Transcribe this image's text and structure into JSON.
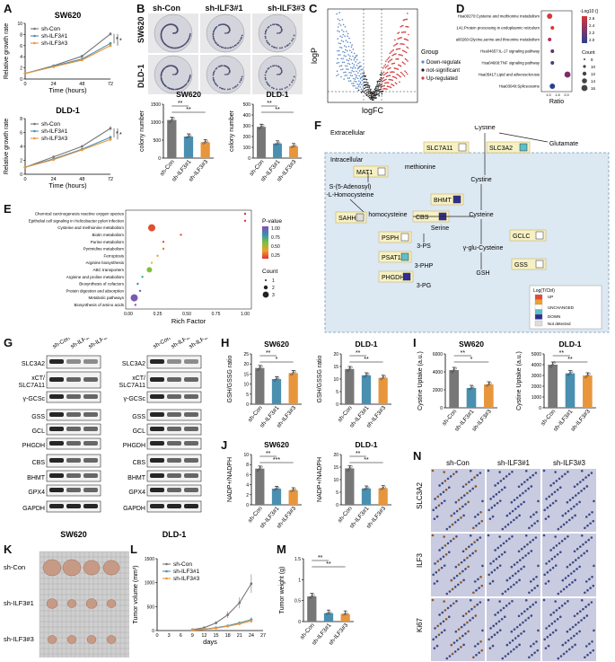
{
  "panels": {
    "A": {
      "letter": "A",
      "charts": [
        {
          "title": "SW620",
          "ylabel": "Relative growth rate",
          "xlabel": "Time (hours)",
          "legend": [
            "sh-Con",
            "sh-ILF3#1",
            "sh-ILF3#3"
          ],
          "sig": [
            "*",
            "*"
          ],
          "xticks": [
            "0",
            "24",
            "48",
            "72"
          ]
        },
        {
          "title": "DLD-1",
          "ylabel": "Relative growth rate",
          "xlabel": "Time (hours)",
          "legend": [
            "sh-Con",
            "sh-ILF3#1",
            "sh-ILF3#3"
          ],
          "sig": [
            "*",
            "*"
          ],
          "xticks": [
            "0",
            "24",
            "48",
            "72"
          ]
        }
      ]
    },
    "B": {
      "letter": "B",
      "col_labels": [
        "sh-Con",
        "sh-ILF3#1",
        "sh-ILF3#3"
      ],
      "row_labels": [
        "SW620",
        "DLD-1"
      ],
      "bar_titles": [
        "SW620",
        "DLD-1"
      ],
      "ylabel": "colony number",
      "sig": [
        "**",
        "**"
      ]
    },
    "C": {
      "letter": "C",
      "xlabel": "logFC",
      "ylabel": "logP",
      "legend_title": "Group",
      "legend": [
        "Down-regulated",
        "not-significant",
        "Up-regulated"
      ]
    },
    "D": {
      "letter": "D",
      "xlabel": "Ratio",
      "terms": [
        "Hsa00270:Cysteine and methionine metabolism",
        "Hsa04141:Protein processing in endoplasmic reticulum",
        "Hsa00260:Glycine,serine and threonine metabolism",
        "Hsa04657:IL-17 signaling pathway",
        "Hsa04668:TNF signaling pathway",
        "Hsa05417:Lipid and atherosclerosis",
        "Hsa03040:Spliceosome"
      ],
      "color_title": "-Log10 ()",
      "count_title": "Count"
    },
    "E": {
      "letter": "E",
      "xlabel": "Rich Factor",
      "terms": [
        "Chemical carcinogenesis reactive oxygen species",
        "Epithelial cell signaling in Helicobacter pylori infection",
        "Cysteine and methionine metabolism",
        "Biotin metabolism",
        "Purine metabolism",
        "Pyrimidine metabolism",
        "Ferroptosis",
        "Arginine biosynthesis",
        "ABC transporters",
        "Arginine and proline metabolism",
        "Biosynthesis of cofactors",
        "Protein digestion and absorption",
        "Metabolic pathways",
        "Biosynthesis of amino acids"
      ],
      "pvalue_title": "P-value",
      "count_title": "Count"
    },
    "F": {
      "letter": "F",
      "labels": {
        "extracellular": "Extracellular",
        "intracellular": "Intracellular",
        "cystine_top": "Cystine",
        "glutamate": "Glutamate",
        "slc7a11": "SLC7A11",
        "slc3a2": "SLC3A2",
        "mat1": "MAT1",
        "methionine": "methionine",
        "sam": "S-(5-Adenosyl)\n-L-Homocysteine",
        "bhmt": "BHMT",
        "sahh": "SAHH",
        "homocysteine": "homocysteine",
        "cbs": "CBS",
        "cystine_in": "Cystine",
        "cysteine": "Cysteine",
        "serine": "Serine",
        "gclc": "GCLC",
        "psph": "PSPH",
        "ps3": "3-PS",
        "psat1": "PSAT1",
        "php3": "3-PHP",
        "phgdh": "PHGDH",
        "pg3": "3-PG",
        "gglu": "γ-glu-Cysteine",
        "gss": "GSS",
        "gsh": "GSH",
        "legend_title": "Log(T/Ctrl)",
        "up": "UP",
        "unchanged": "UNCHANGED",
        "down": "DOWN",
        "nd": "Not detected"
      }
    },
    "G": {
      "letter": "G",
      "col_labels": [
        "sh-Con",
        "sh-ILF3#1",
        "sh-ILF3#3"
      ],
      "rows": [
        "SLC3A2",
        "xCT/\nSLC7A11",
        "γ-GCSc",
        "GSS",
        "GCL",
        "PHGDH",
        "CBS",
        "BHMT",
        "GPX4",
        "GAPDH"
      ],
      "cells": [
        "SW620",
        "DLD-1"
      ]
    },
    "H": {
      "letter": "H",
      "titles": [
        "SW620",
        "DLD-1"
      ],
      "ylabel": "GSH/GSSG ratio"
    },
    "I": {
      "letter": "I",
      "titles": [
        "SW620",
        "DLD-1"
      ],
      "ylabel": "Cystine Uptake (a.u.)"
    },
    "J": {
      "letter": "J",
      "titles": [
        "SW620",
        "DLD-1"
      ],
      "ylabel": "NADP+/NADPH"
    },
    "K": {
      "letter": "K",
      "rows": [
        "sh-Con",
        "sh-ILF3#1",
        "sh-ILF3#3"
      ]
    },
    "L": {
      "letter": "L",
      "xlabel": "days",
      "ylabel": "Tumor volume (mm³)",
      "legend": [
        "sh-Con",
        "sh-ILF3#1",
        "sh-ILF3#3"
      ]
    },
    "M": {
      "letter": "M",
      "ylabel": "Tumor weight (g)"
    },
    "N": {
      "letter": "N",
      "cols": [
        "sh-Con",
        "sh-ILF3#1",
        "sh-ILF3#3"
      ],
      "rows": [
        "SLC3A2",
        "ILF3",
        "Ki67"
      ]
    }
  },
  "chart_data": [
    {
      "type": "line",
      "title": "SW620",
      "x": [
        0,
        24,
        48,
        72
      ],
      "xlabel": "Time (hours)",
      "ylabel": "Relative growth rate",
      "ylim": [
        0,
        10
      ],
      "series": [
        {
          "name": "sh-Con",
          "values": [
            1,
            2.4,
            4.1,
            8.1
          ]
        },
        {
          "name": "sh-ILF3#1",
          "values": [
            1,
            2.3,
            3.6,
            6.4
          ]
        },
        {
          "name": "sh-ILF3#3",
          "values": [
            1,
            2.2,
            3.4,
            6.0
          ]
        }
      ]
    },
    {
      "type": "line",
      "title": "DLD-1",
      "x": [
        0,
        24,
        48,
        72
      ],
      "xlabel": "Time (hours)",
      "ylabel": "Relative growth rate",
      "ylim": [
        0,
        8
      ],
      "series": [
        {
          "name": "sh-Con",
          "values": [
            1,
            2.5,
            4.0,
            6.6
          ]
        },
        {
          "name": "sh-ILF3#1",
          "values": [
            1,
            2.2,
            3.6,
            5.3
          ]
        },
        {
          "name": "sh-ILF3#3",
          "values": [
            1,
            2.1,
            3.5,
            5.0
          ]
        }
      ]
    },
    {
      "type": "bar",
      "title": "SW620",
      "categories": [
        "sh-Con",
        "sh-ILF3#1",
        "sh-ILF3#3"
      ],
      "values": [
        1060,
        600,
        440
      ],
      "ylabel": "colony number",
      "ylim": [
        0,
        1500
      ],
      "yticks": [
        0,
        500,
        1000,
        1500
      ]
    },
    {
      "type": "bar",
      "title": "DLD-1",
      "categories": [
        "sh-Con",
        "sh-ILF3#1",
        "sh-ILF3#3"
      ],
      "values": [
        290,
        135,
        110
      ],
      "ylabel": "colony number",
      "ylim": [
        0,
        500
      ],
      "yticks": [
        0,
        100,
        200,
        300,
        400,
        500
      ]
    },
    {
      "type": "bar",
      "title": "SW620",
      "categories": [
        "sh-Con",
        "sh-ILF3#1",
        "sh-ILF3#3"
      ],
      "values": [
        18,
        12.5,
        15.5
      ],
      "ylabel": "GSH/GSSG ratio",
      "ylim": [
        0,
        25
      ],
      "yticks": [
        0,
        5,
        10,
        15,
        20,
        25
      ]
    },
    {
      "type": "bar",
      "title": "DLD-1",
      "categories": [
        "sh-Con",
        "sh-ILF3#1",
        "sh-ILF3#3"
      ],
      "values": [
        14,
        11.5,
        10.5
      ],
      "ylabel": "GSH/GSSG ratio",
      "ylim": [
        0,
        20
      ],
      "yticks": [
        0,
        5,
        10,
        15,
        20
      ]
    },
    {
      "type": "bar",
      "title": "SW620",
      "categories": [
        "sh-Con",
        "sh-ILF3#1",
        "sh-ILF3#3"
      ],
      "values": [
        4200,
        2200,
        2600
      ],
      "ylabel": "Cystine Uptake (a.u.)",
      "ylim": [
        0,
        6000
      ],
      "yticks": [
        0,
        2000,
        4000,
        6000
      ]
    },
    {
      "type": "bar",
      "title": "DLD-1",
      "categories": [
        "sh-Con",
        "sh-ILF3#1",
        "sh-ILF3#3"
      ],
      "values": [
        4000,
        3200,
        3000
      ],
      "ylabel": "Cystine Uptake (a.u.)",
      "ylim": [
        0,
        5000
      ],
      "yticks": [
        0,
        1000,
        2000,
        3000,
        4000,
        5000
      ]
    },
    {
      "type": "bar",
      "title": "SW620",
      "categories": [
        "sh-Con",
        "sh-ILF3#1",
        "sh-ILF3#3"
      ],
      "values": [
        7.2,
        3.2,
        2.9
      ],
      "ylabel": "NADP+/NADPH",
      "ylim": [
        0,
        10
      ],
      "yticks": [
        0,
        2,
        4,
        6,
        8,
        10
      ]
    },
    {
      "type": "bar",
      "title": "DLD-1",
      "categories": [
        "sh-Con",
        "sh-ILF3#1",
        "sh-ILF3#3"
      ],
      "values": [
        14.5,
        6.5,
        6.6
      ],
      "ylabel": "NADP+/NADPH",
      "ylim": [
        0,
        20
      ],
      "yticks": [
        0,
        5,
        10,
        15,
        20
      ]
    },
    {
      "type": "line",
      "x": [
        0,
        3,
        6,
        9,
        12,
        15,
        18,
        21,
        24,
        27
      ],
      "xlabel": "days",
      "ylabel": "Tumor volume (mm³)",
      "ylim": [
        0,
        1500
      ],
      "series": [
        {
          "name": "sh-Con",
          "values": [
            null,
            null,
            null,
            20,
            60,
            160,
            330,
            580,
            980,
            null
          ]
        },
        {
          "name": "sh-ILF3#1",
          "values": [
            null,
            null,
            null,
            10,
            30,
            60,
            100,
            160,
            230,
            null
          ]
        },
        {
          "name": "sh-ILF3#3",
          "values": [
            null,
            null,
            null,
            10,
            25,
            50,
            90,
            140,
            200,
            null
          ]
        }
      ]
    },
    {
      "type": "bar",
      "categories": [
        "sh-Con",
        "sh-ILF3#1",
        "sh-ILF3#3"
      ],
      "values": [
        0.6,
        0.2,
        0.18
      ],
      "ylabel": "Tumor weight (g)",
      "ylim": [
        0,
        1.5
      ],
      "yticks": [
        0.0,
        0.5,
        1.0,
        1.5
      ]
    }
  ]
}
